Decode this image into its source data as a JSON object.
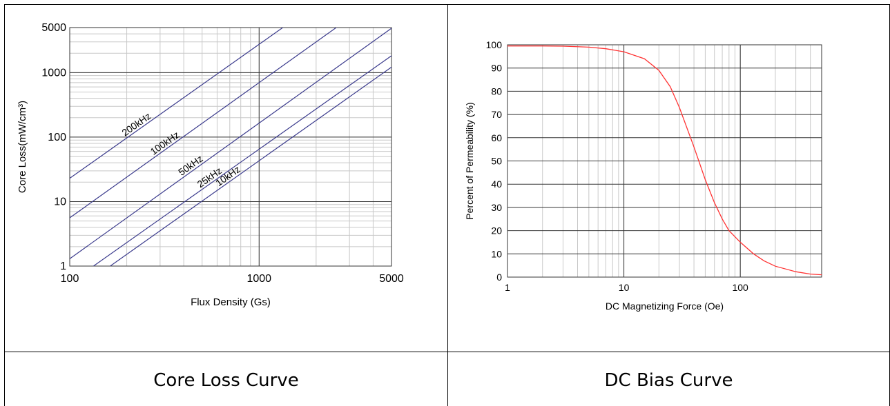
{
  "captions": {
    "left": "Core Loss Curve",
    "right": "DC Bias Curve"
  },
  "chart_data": [
    {
      "type": "line",
      "xlabel": "Flux Density (Gs)",
      "ylabel": "Core Loss(mW/cm³)",
      "x_scale": "log",
      "y_scale": "log",
      "xlim": [
        100,
        5000
      ],
      "ylim": [
        1,
        5000
      ],
      "x_ticks": [
        {
          "value": 100,
          "label": "100"
        },
        {
          "value": 1000,
          "label": "1000"
        },
        {
          "value": 5000,
          "label": "5000"
        }
      ],
      "y_ticks": [
        {
          "value": 1,
          "label": "1"
        },
        {
          "value": 10,
          "label": "10"
        },
        {
          "value": 100,
          "label": "100"
        },
        {
          "value": 1000,
          "label": "1000"
        },
        {
          "value": 5000,
          "label": "5000"
        }
      ],
      "grid": true,
      "line_color": "#3a3a8c",
      "series": [
        {
          "name": "200kHz",
          "x": [
            100,
            1000
          ],
          "y": [
            23,
            2750
          ]
        },
        {
          "name": "100kHz",
          "x": [
            100,
            1000
          ],
          "y": [
            5.6,
            700
          ]
        },
        {
          "name": "50kHz",
          "x": [
            100,
            1000
          ],
          "y": [
            1.3,
            165
          ]
        },
        {
          "name": "25kHz",
          "x": [
            100,
            1000
          ],
          "y": [
            0.55,
            65
          ]
        },
        {
          "name": "10kHz",
          "x": [
            100,
            1000
          ],
          "y": [
            0.36,
            43
          ]
        }
      ]
    },
    {
      "type": "line",
      "xlabel": "DC Magnetizing Force (Oe)",
      "ylabel": "Percent of Permeability (%)",
      "x_scale": "log",
      "xlim": [
        1,
        500
      ],
      "ylim": [
        0,
        100
      ],
      "x_ticks": [
        {
          "value": 1,
          "label": "1"
        },
        {
          "value": 10,
          "label": "10"
        },
        {
          "value": 100,
          "label": "100"
        }
      ],
      "y_ticks": [
        {
          "value": 0,
          "label": "0"
        },
        {
          "value": 10,
          "label": "10"
        },
        {
          "value": 20,
          "label": "20"
        },
        {
          "value": 30,
          "label": "30"
        },
        {
          "value": 40,
          "label": "40"
        },
        {
          "value": 50,
          "label": "50"
        },
        {
          "value": 60,
          "label": "60"
        },
        {
          "value": 70,
          "label": "70"
        },
        {
          "value": 80,
          "label": "80"
        },
        {
          "value": 90,
          "label": "90"
        },
        {
          "value": 100,
          "label": "100"
        }
      ],
      "grid": true,
      "line_color": "#ff3333",
      "series": [
        {
          "x": [
            1,
            2,
            3,
            5,
            7,
            10,
            15,
            20,
            25,
            30,
            40,
            50,
            60,
            70,
            80,
            100,
            130,
            160,
            200,
            300,
            400,
            500
          ],
          "y": [
            99.5,
            99.5,
            99.4,
            99,
            98.3,
            97,
            94,
            89,
            82,
            73,
            56,
            42,
            32,
            25,
            20,
            15,
            10,
            7,
            4.7,
            2.3,
            1.3,
            1
          ]
        }
      ]
    }
  ]
}
